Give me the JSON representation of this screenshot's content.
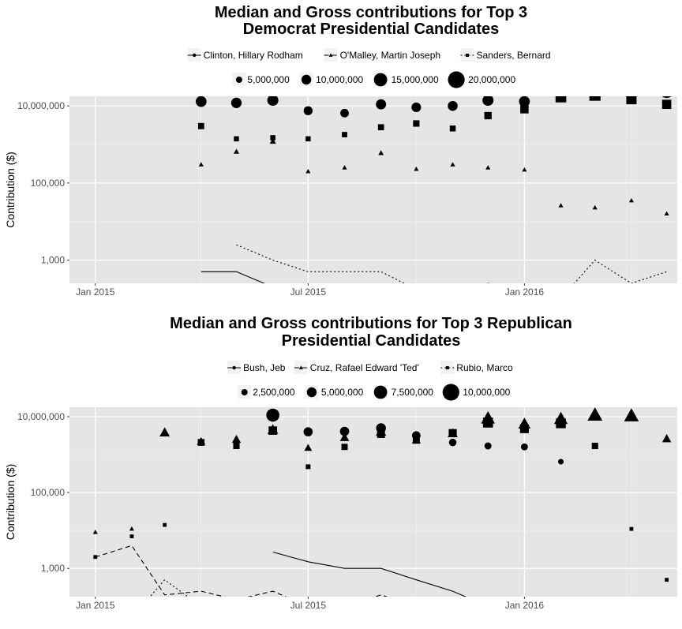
{
  "chart_data": [
    {
      "type": "line",
      "title_lines": [
        "Median and Gross contributions for Top 3",
        "Democrat Presidential Candidates"
      ],
      "ylabel": "Contribution ($)",
      "yscale": "log10",
      "ylim": [
        250,
        30000
      ],
      "y_ticks": [
        {
          "value": 1000,
          "label": "1,000"
        },
        {
          "value": 100000,
          "label": "100,000"
        },
        {
          "value": 10000000,
          "label": "10,000,000"
        }
      ],
      "x_ticks": [
        {
          "value": "2015-01-01",
          "label": "Jan 2015"
        },
        {
          "value": "2015-07-01",
          "label": "Jul 2015"
        },
        {
          "value": "2016-01-01",
          "label": "Jan 2016"
        }
      ],
      "xlim": [
        "2014-12-10",
        "2016-05-10"
      ],
      "size_legend": [
        {
          "label": "5,000,000",
          "value": 5000000
        },
        {
          "label": "10,000,000",
          "value": 10000000
        },
        {
          "label": "15,000,000",
          "value": 15000000
        },
        {
          "label": "20,000,000",
          "value": 20000000
        }
      ],
      "series": [
        {
          "name": "Clinton, Hillary Rodham",
          "linetype": "solid",
          "marker": "circle",
          "median": [
            [
              "2015-04-01",
              500
            ],
            [
              "2015-05-01",
              500
            ],
            [
              "2015-06-01",
              200
            ],
            [
              "2015-07-01",
              100
            ],
            [
              "2015-08-01",
              88
            ],
            [
              "2015-09-01",
              100
            ],
            [
              "2015-10-01",
              50
            ],
            [
              "2015-11-01",
              50
            ],
            [
              "2015-12-01",
              50
            ],
            [
              "2016-01-01",
              50
            ],
            [
              "2016-02-01",
              50
            ],
            [
              "2016-03-01",
              27
            ],
            [
              "2016-04-01",
              27
            ],
            [
              "2016-05-01",
              25
            ]
          ],
          "gross": [
            [
              "2015-04-01",
              13000000
            ],
            [
              "2015-05-01",
              12000000
            ],
            [
              "2015-06-01",
              14000000
            ],
            [
              "2015-07-01",
              7500000
            ],
            [
              "2015-08-01",
              6500000
            ],
            [
              "2015-09-01",
              11000000
            ],
            [
              "2015-10-01",
              9200000
            ],
            [
              "2015-11-01",
              10000000
            ],
            [
              "2015-12-01",
              14000000
            ],
            [
              "2016-01-01",
              13000000
            ],
            [
              "2016-02-01",
              24000000
            ],
            [
              "2016-03-01",
              25000000
            ],
            [
              "2016-04-01",
              22000000
            ],
            [
              "2016-05-01",
              24000000
            ]
          ]
        },
        {
          "name": "O'Malley, Martin Joseph",
          "linetype": "dashed",
          "marker": "triangle",
          "median": [
            [
              "2015-04-01",
              100
            ],
            [
              "2015-05-01",
              93
            ],
            [
              "2015-06-01",
              93
            ],
            [
              "2015-07-01",
              93
            ],
            [
              "2015-08-01",
              50
            ],
            [
              "2015-09-01",
              50
            ],
            [
              "2015-10-01",
              35
            ],
            [
              "2015-11-01",
              28
            ],
            [
              "2015-12-01",
              25
            ],
            [
              "2016-01-01",
              25
            ],
            [
              "2016-02-01",
              27
            ],
            [
              "2016-03-01",
              27
            ],
            [
              "2016-04-01",
              27
            ],
            [
              "2016-05-01",
              25
            ]
          ],
          "gross": [
            [
              "2015-04-01",
              300000
            ],
            [
              "2015-05-01",
              650000
            ],
            [
              "2015-06-01",
              1200000
            ],
            [
              "2015-07-01",
              200000
            ],
            [
              "2015-08-01",
              250000
            ],
            [
              "2015-09-01",
              600000
            ],
            [
              "2015-10-01",
              230000
            ],
            [
              "2015-11-01",
              300000
            ],
            [
              "2015-12-01",
              250000
            ],
            [
              "2016-01-01",
              220000
            ],
            [
              "2016-02-01",
              26000
            ],
            [
              "2016-03-01",
              23000
            ],
            [
              "2016-04-01",
              35000
            ],
            [
              "2016-05-01",
              16000
            ]
          ]
        },
        {
          "name": "Sanders, Bernard",
          "linetype": "dotted",
          "marker": "square",
          "median": [
            [
              "2015-05-01",
              2500
            ],
            [
              "2015-06-01",
              1000
            ],
            [
              "2015-07-01",
              500
            ],
            [
              "2015-08-01",
              500
            ],
            [
              "2015-09-01",
              500
            ],
            [
              "2015-10-01",
              175
            ],
            [
              "2015-11-01",
              200
            ],
            [
              "2015-12-01",
              250
            ],
            [
              "2016-01-01",
              125
            ],
            [
              "2016-02-01",
              100
            ],
            [
              "2016-03-01",
              1000
            ],
            [
              "2016-04-01",
              250
            ],
            [
              "2016-05-01",
              500
            ]
          ],
          "gross": [
            [
              "2015-04-01",
              3000000
            ],
            [
              "2015-05-01",
              1400000
            ],
            [
              "2015-06-01",
              1500000
            ],
            [
              "2015-07-01",
              1400000
            ],
            [
              "2015-08-01",
              1800000
            ],
            [
              "2015-09-01",
              2800000
            ],
            [
              "2015-10-01",
              3500000
            ],
            [
              "2015-11-01",
              2600000
            ],
            [
              "2015-12-01",
              5600000
            ],
            [
              "2016-01-01",
              8200000
            ],
            [
              "2016-02-01",
              17000000
            ],
            [
              "2016-03-01",
              19000000
            ],
            [
              "2016-04-01",
              15000000
            ],
            [
              "2016-05-01",
              11000000
            ]
          ]
        }
      ]
    },
    {
      "type": "line",
      "title_lines": [
        "Median and Gross contributions for Top 3 Republican",
        "Presidential Candidates"
      ],
      "ylabel": "Contribution ($)",
      "yscale": "log10",
      "ylim": [
        180,
        30000
      ],
      "y_ticks": [
        {
          "value": 1000,
          "label": "1,000"
        },
        {
          "value": 100000,
          "label": "100,000"
        },
        {
          "value": 10000000,
          "label": "10,000,000"
        }
      ],
      "x_ticks": [
        {
          "value": "2015-01-01",
          "label": "Jan 2015"
        },
        {
          "value": "2015-07-01",
          "label": "Jul 2015"
        },
        {
          "value": "2016-01-01",
          "label": "Jan 2016"
        }
      ],
      "xlim": [
        "2014-12-10",
        "2016-05-10"
      ],
      "size_legend": [
        {
          "label": "2,500,000",
          "value": 2500000
        },
        {
          "label": "5,000,000",
          "value": 5000000
        },
        {
          "label": "7,500,000",
          "value": 7500000
        },
        {
          "label": "10,000,000",
          "value": 10000000
        }
      ],
      "series": [
        {
          "name": "Bush, Jeb",
          "linetype": "solid",
          "marker": "circle",
          "median": [
            [
              "2015-06-01",
              2700
            ],
            [
              "2015-07-01",
              1500
            ],
            [
              "2015-08-01",
              1000
            ],
            [
              "2015-09-01",
              1000
            ],
            [
              "2015-10-01",
              500
            ],
            [
              "2015-11-01",
              250
            ],
            [
              "2015-12-01",
              100
            ],
            [
              "2016-01-01",
              100
            ],
            [
              "2016-02-01",
              50
            ],
            [
              "2016-03-01",
              100
            ]
          ],
          "gross": [
            [
              "2015-06-01",
              11000000
            ],
            [
              "2015-07-01",
              4000000
            ],
            [
              "2015-08-01",
              4100000
            ],
            [
              "2015-09-01",
              5000000
            ],
            [
              "2015-10-01",
              3200000
            ],
            [
              "2015-11-01",
              2100000
            ],
            [
              "2015-12-01",
              1700000
            ],
            [
              "2016-01-01",
              1600000
            ],
            [
              "2016-02-01",
              650000
            ]
          ]
        },
        {
          "name": "Cruz, Rafael Edward 'Ted'",
          "linetype": "dashed",
          "marker": "triangle",
          "median": [
            [
              "2015-01-01",
              2000
            ],
            [
              "2015-02-01",
              4000
            ],
            [
              "2015-03-01",
              200
            ],
            [
              "2015-04-01",
              250
            ],
            [
              "2015-05-01",
              150
            ],
            [
              "2015-06-01",
              250
            ],
            [
              "2015-07-01",
              100
            ],
            [
              "2015-08-01",
              100
            ],
            [
              "2015-09-01",
              200
            ],
            [
              "2015-10-01",
              100
            ],
            [
              "2015-11-01",
              100
            ],
            [
              "2015-12-01",
              100
            ],
            [
              "2016-01-01",
              100
            ],
            [
              "2016-02-01",
              50
            ],
            [
              "2016-03-01",
              35
            ],
            [
              "2016-04-01",
              25
            ],
            [
              "2016-05-01",
              25
            ]
          ],
          "gross": [
            [
              "2015-01-01",
              9000
            ],
            [
              "2015-02-01",
              11000
            ],
            [
              "2015-03-01",
              3800000
            ],
            [
              "2015-04-01",
              2200000
            ],
            [
              "2015-05-01",
              2500000
            ],
            [
              "2015-06-01",
              4500000
            ],
            [
              "2015-07-01",
              1500000
            ],
            [
              "2015-08-01",
              2800000
            ],
            [
              "2015-09-01",
              4000000
            ],
            [
              "2015-10-01",
              2400000
            ],
            [
              "2015-11-01",
              3600000
            ],
            [
              "2015-12-01",
              9000000
            ],
            [
              "2016-01-01",
              6400000
            ],
            [
              "2016-02-01",
              8700000
            ],
            [
              "2016-03-01",
              11000000
            ],
            [
              "2016-04-01",
              10500000
            ],
            [
              "2016-05-01",
              2600000
            ]
          ]
        },
        {
          "name": "Rubio, Marco",
          "linetype": "dotted",
          "marker": "square",
          "median": [
            [
              "2015-01-01",
              100
            ],
            [
              "2015-02-01",
              50
            ],
            [
              "2015-03-01",
              500
            ],
            [
              "2015-04-01",
              100
            ],
            [
              "2015-05-01",
              100
            ],
            [
              "2015-06-01",
              100
            ],
            [
              "2015-07-01",
              50
            ],
            [
              "2015-08-01",
              75
            ],
            [
              "2015-09-01",
              50
            ],
            [
              "2015-10-01",
              50
            ],
            [
              "2015-11-01",
              50
            ],
            [
              "2015-12-01",
              50
            ],
            [
              "2016-01-01",
              50
            ],
            [
              "2016-02-01",
              50
            ],
            [
              "2016-03-01",
              35
            ],
            [
              "2016-04-01",
              35
            ],
            [
              "2016-05-01",
              50
            ]
          ],
          "gross": [
            [
              "2015-01-01",
              2000
            ],
            [
              "2015-02-01",
              7000
            ],
            [
              "2015-03-01",
              14000
            ],
            [
              "2015-04-01",
              2100000
            ],
            [
              "2015-05-01",
              1700000
            ],
            [
              "2015-06-01",
              4300000
            ],
            [
              "2015-07-01",
              480000
            ],
            [
              "2015-08-01",
              1600000
            ],
            [
              "2015-09-01",
              3500000
            ],
            [
              "2015-10-01",
              2400000
            ],
            [
              "2015-11-01",
              3700000
            ],
            [
              "2015-12-01",
              7000000
            ],
            [
              "2016-01-01",
              4800000
            ],
            [
              "2016-02-01",
              6700000
            ],
            [
              "2016-03-01",
              1700000
            ],
            [
              "2016-04-01",
              11000
            ],
            [
              "2016-05-01",
              500
            ]
          ]
        }
      ]
    }
  ]
}
